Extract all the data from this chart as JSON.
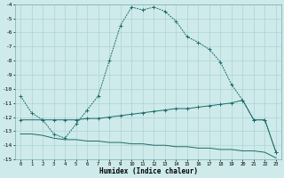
{
  "xlabel": "Humidex (Indice chaleur)",
  "bg_color": "#ceeaea",
  "line_color": "#1e6b6b",
  "grid_color": "#aed4d4",
  "series1": {
    "x": [
      0,
      1,
      2,
      3,
      4,
      5,
      6,
      7,
      8,
      9,
      10,
      11,
      12,
      13,
      14,
      15,
      16,
      17,
      18,
      19,
      20,
      21,
      22,
      23
    ],
    "y": [
      -10.5,
      -11.7,
      -12.2,
      -13.2,
      -13.5,
      -12.5,
      -11.5,
      -10.5,
      -8.0,
      -5.5,
      -4.2,
      -4.4,
      -4.2,
      -4.5,
      -5.2,
      -6.3,
      -6.7,
      -7.2,
      -8.1,
      -9.7,
      -10.8,
      -12.2,
      -12.2,
      -14.5
    ]
  },
  "series2": {
    "x": [
      0,
      2,
      3,
      4,
      5,
      6,
      7,
      8,
      9,
      10,
      11,
      12,
      13,
      14,
      15,
      16,
      17,
      18,
      19,
      20,
      21,
      22,
      23
    ],
    "y": [
      -12.2,
      -12.2,
      -12.2,
      -12.2,
      -12.2,
      -12.1,
      -12.1,
      -12.0,
      -11.9,
      -11.8,
      -11.7,
      -11.6,
      -11.5,
      -11.4,
      -11.4,
      -11.3,
      -11.2,
      -11.1,
      -11.0,
      -10.8,
      -12.2,
      -12.2,
      -14.5
    ]
  },
  "series3": {
    "x": [
      0,
      1,
      2,
      3,
      4,
      5,
      6,
      7,
      8,
      9,
      10,
      11,
      12,
      13,
      14,
      15,
      16,
      17,
      18,
      19,
      20,
      21,
      22,
      23
    ],
    "y": [
      -13.2,
      -13.2,
      -13.3,
      -13.5,
      -13.6,
      -13.6,
      -13.7,
      -13.7,
      -13.8,
      -13.8,
      -13.9,
      -13.9,
      -14.0,
      -14.0,
      -14.1,
      -14.1,
      -14.2,
      -14.2,
      -14.3,
      -14.3,
      -14.4,
      -14.4,
      -14.5,
      -14.9
    ]
  },
  "series4": {
    "x": [
      2,
      3,
      4,
      19,
      20,
      21
    ],
    "y": [
      -12.2,
      -13.3,
      -13.6,
      -10.8,
      -12.2,
      -12.2
    ]
  },
  "ylim": [
    -15.0,
    -4.0
  ],
  "xlim": [
    -0.5,
    23.5
  ],
  "yticks": [
    -4,
    -5,
    -6,
    -7,
    -8,
    -9,
    -10,
    -11,
    -12,
    -13,
    -14,
    -15
  ],
  "xticks": [
    0,
    1,
    2,
    3,
    4,
    5,
    6,
    7,
    8,
    9,
    10,
    11,
    12,
    13,
    14,
    15,
    16,
    17,
    18,
    19,
    20,
    21,
    22,
    23
  ]
}
